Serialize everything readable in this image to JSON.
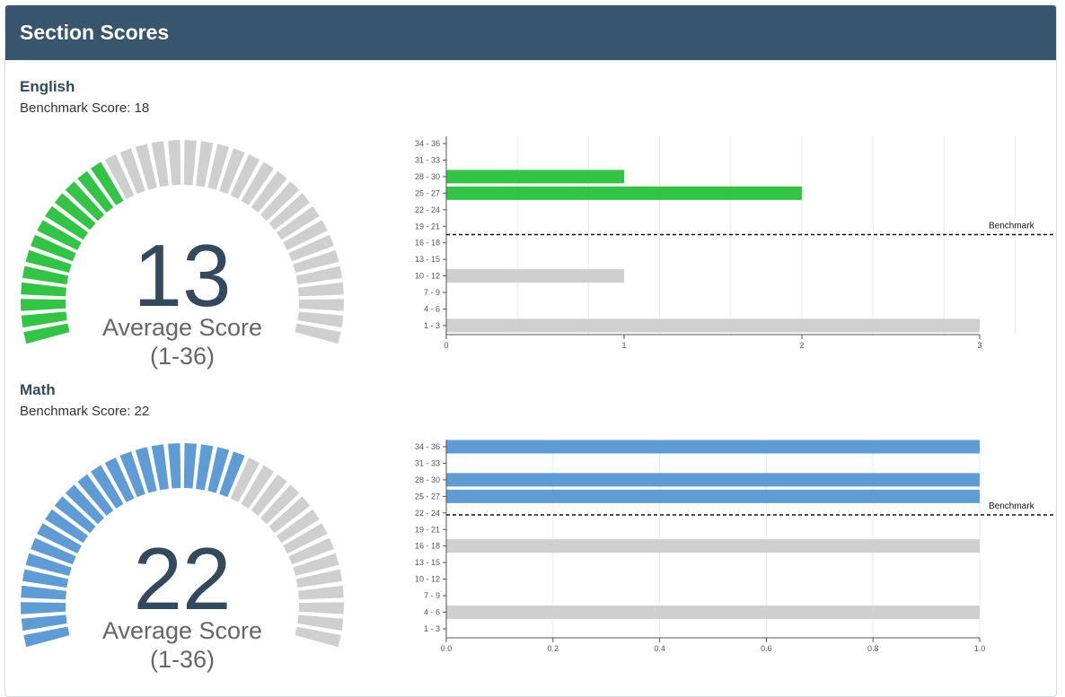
{
  "header": {
    "title": "Section Scores"
  },
  "avg_label": "Average Score",
  "range_label": "(1-36)",
  "colors": {
    "header": "#37566d",
    "english": "#33c446",
    "math": "#5f9bd5",
    "below": "#cfcfcf"
  },
  "sections": [
    {
      "name": "English",
      "benchmark_label": "Benchmark Score: 18",
      "score": "13",
      "gauge_max": 36,
      "chart_data": {
        "type": "bar",
        "orientation": "horizontal",
        "categories": [
          "34 - 36",
          "31 - 33",
          "28 - 30",
          "25 - 27",
          "22 - 24",
          "19 - 21",
          "16 - 18",
          "13 - 15",
          "10 - 12",
          "7 - 9",
          "4 - 6",
          "1 - 3"
        ],
        "values": [
          0,
          0,
          1,
          2,
          0,
          0,
          0,
          0,
          1,
          0,
          0,
          3
        ],
        "benchmark": 18,
        "benchmark_label": "Benchmark",
        "xticks": [
          "0",
          "1",
          "2",
          "3"
        ],
        "xlim": [
          0,
          3
        ],
        "grid": true
      }
    },
    {
      "name": "Math",
      "benchmark_label": "Benchmark Score: 22",
      "score": "22",
      "gauge_max": 36,
      "chart_data": {
        "type": "bar",
        "orientation": "horizontal",
        "categories": [
          "34 - 36",
          "31 - 33",
          "28 - 30",
          "25 - 27",
          "22 - 24",
          "19 - 21",
          "16 - 18",
          "13 - 15",
          "10 - 12",
          "7 - 9",
          "4 - 6",
          "1 - 3"
        ],
        "values": [
          1,
          0,
          1,
          1,
          0,
          0,
          1,
          0,
          0,
          0,
          1,
          0
        ],
        "benchmark": 22,
        "benchmark_label": "Benchmark",
        "xticks": [
          "0.0",
          "0.2",
          "0.4",
          "0.6",
          "0.8",
          "1.0"
        ],
        "xlim": [
          0,
          1
        ],
        "grid": true
      }
    }
  ]
}
